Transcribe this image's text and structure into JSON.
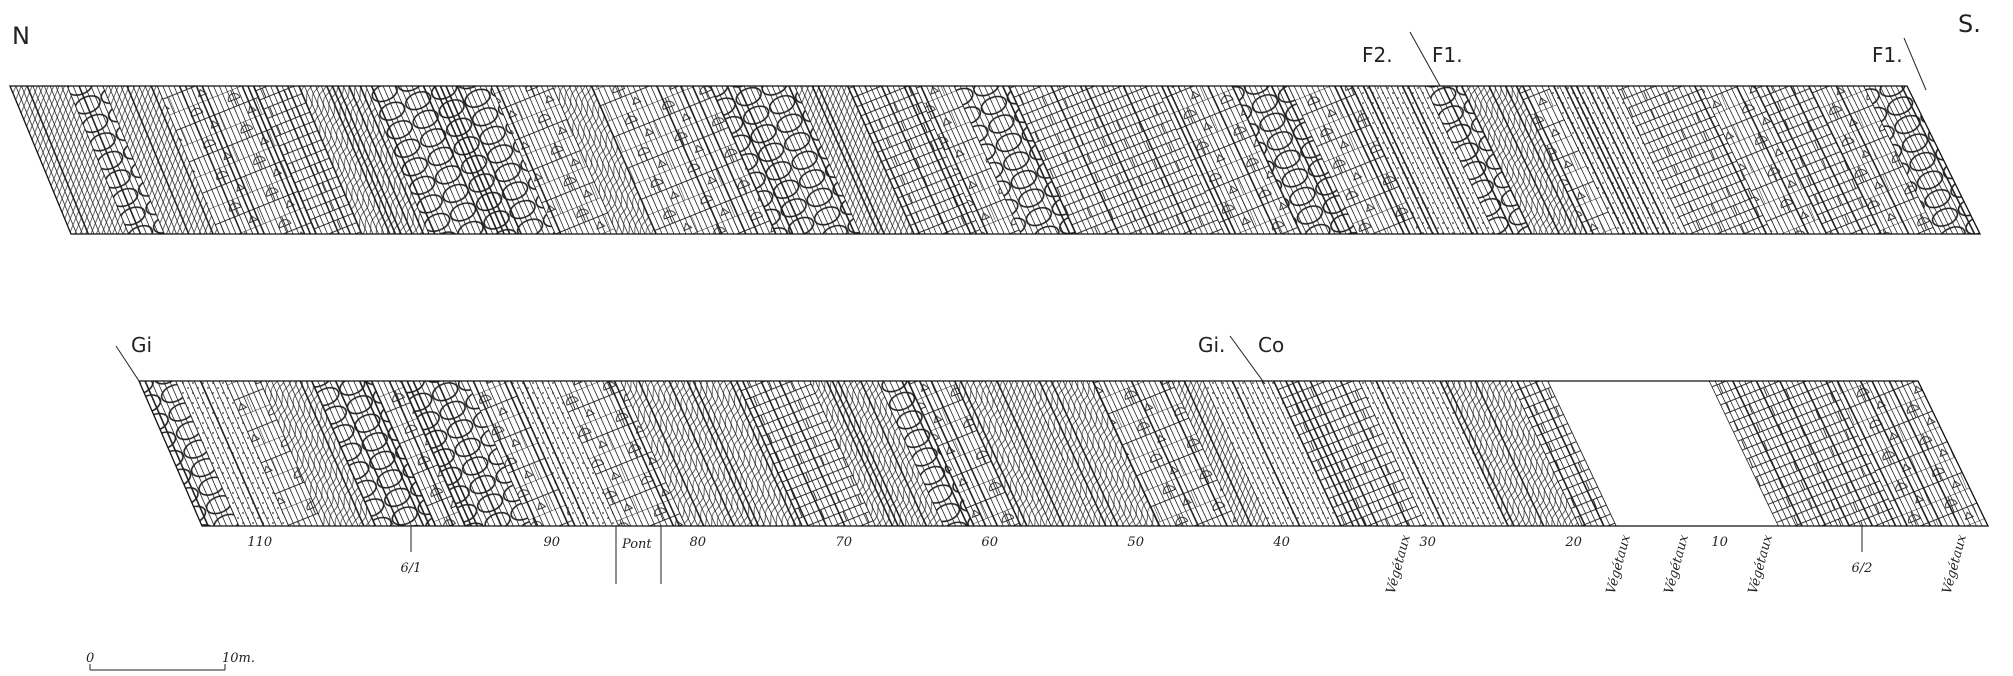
{
  "header": {
    "north": "N",
    "south": "S."
  },
  "upper_section": {
    "faults": [
      "F2.",
      "F1.",
      "F1."
    ]
  },
  "lower_section": {
    "contacts": [
      "Gi",
      "Gi.",
      "Co"
    ],
    "distance_labels": [
      110,
      90,
      80,
      70,
      60,
      50,
      40,
      30,
      20,
      10
    ],
    "bridge": "Pont",
    "samples": [
      "6/1",
      "6/2"
    ],
    "vegetation": [
      "Végétaux",
      "Végétaux",
      "Végétaux",
      "Végétaux",
      "Végétaux"
    ]
  },
  "scale_bar": {
    "start": "0",
    "end": "10m."
  }
}
